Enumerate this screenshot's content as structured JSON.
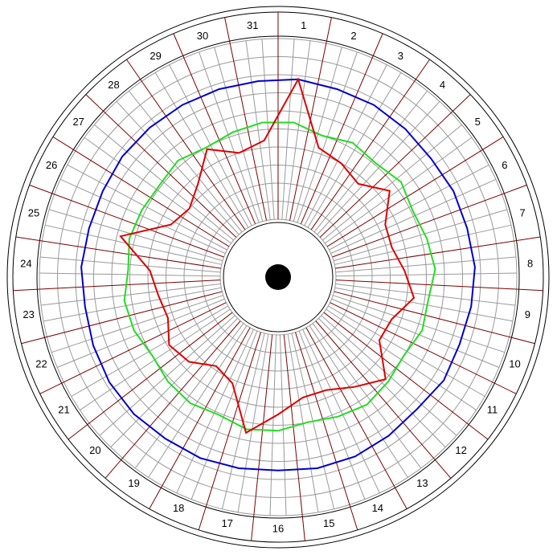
{
  "chart_data": {
    "type": "polar",
    "categories": [
      "1",
      "2",
      "3",
      "4",
      "5",
      "6",
      "7",
      "8",
      "9",
      "10",
      "11",
      "12",
      "13",
      "14",
      "15",
      "16",
      "17",
      "18",
      "19",
      "20",
      "21",
      "22",
      "23",
      "24",
      "25",
      "26",
      "27",
      "28",
      "29",
      "30",
      "31"
    ],
    "series": [
      {
        "color": "#0000cc",
        "values": [
          7.8,
          7.7,
          7.7,
          7.6,
          7.5,
          7.6,
          7.6,
          7.7,
          7.6,
          7.5,
          7.6,
          7.4,
          7.5,
          7.6,
          7.6,
          7.5,
          7.6,
          7.7,
          7.7,
          7.8,
          7.8,
          7.7,
          7.6,
          7.7,
          7.6,
          7.6,
          7.7,
          7.7,
          7.7,
          7.7,
          7.7
        ]
      },
      {
        "color": "#22dd22",
        "values": [
          5.4,
          5.0,
          5.3,
          5.1,
          5.4,
          5.1,
          5.3,
          5.5,
          5.2,
          5.3,
          5.0,
          5.2,
          5.4,
          5.2,
          5.0,
          5.3,
          5.4,
          5.1,
          5.3,
          5.2,
          5.0,
          5.3,
          5.4,
          5.1,
          5.3,
          5.2,
          5.1,
          5.3,
          5.0,
          5.2,
          5.4
        ]
      },
      {
        "color": "#dd0000",
        "values": [
          7.8,
          4.3,
          4.0,
          3.6,
          4.6,
          3.4,
          3.3,
          3.8,
          4.4,
          3.5,
          3.4,
          5.0,
          4.2,
          3.6,
          3.6,
          4.4,
          5.6,
          3.2,
          2.8,
          3.6,
          3.9,
          3.3,
          3.5,
          3.9,
          5.8,
          3.4,
          3.0,
          3.6,
          4.9,
          4.0,
          4.4
        ]
      }
    ],
    "rlim": [
      0,
      10
    ],
    "rticks": [
      0,
      1,
      2,
      3,
      4,
      5,
      6,
      7,
      8,
      9,
      10
    ],
    "grid": true
  }
}
